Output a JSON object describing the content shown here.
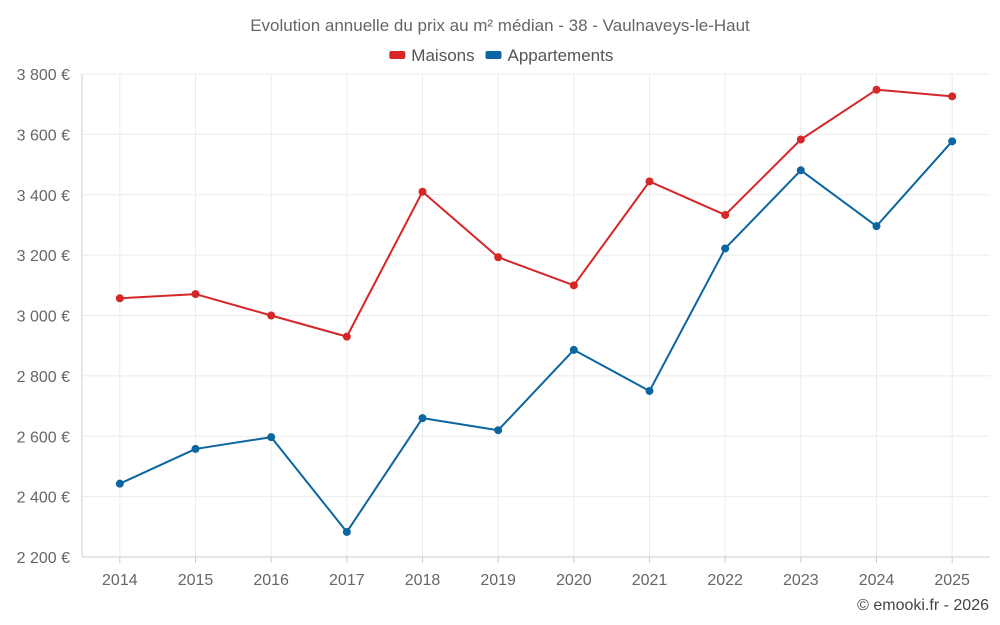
{
  "chart_data": {
    "type": "line",
    "title": "Evolution annuelle du prix au m² médian - 38 - Vaulnaveys-le-Haut",
    "categories": [
      "2014",
      "2015",
      "2016",
      "2017",
      "2018",
      "2019",
      "2020",
      "2021",
      "2022",
      "2023",
      "2024",
      "2025"
    ],
    "series": [
      {
        "name": "Maisons",
        "color": "#d62728",
        "values": [
          3057,
          3071,
          3000,
          2930,
          3410,
          3193,
          3100,
          3444,
          3333,
          3583,
          3748,
          3726
        ]
      },
      {
        "name": "Appartements",
        "color": "#0b65a0",
        "values": [
          2443,
          2558,
          2597,
          2283,
          2660,
          2620,
          2886,
          2750,
          3222,
          3481,
          3296,
          3577
        ]
      }
    ],
    "ylim": [
      2200,
      3800
    ],
    "yticks": [
      2200,
      2400,
      2600,
      2800,
      3000,
      3200,
      3400,
      3600,
      3800
    ],
    "ytick_labels": [
      "2 200 €",
      "2 400 €",
      "2 600 €",
      "2 800 €",
      "3 000 €",
      "3 200 €",
      "3 400 €",
      "3 600 €",
      "3 800 €"
    ],
    "grid": true,
    "legend_position": "top-center",
    "credit": "© emooki.fr - 2026"
  }
}
